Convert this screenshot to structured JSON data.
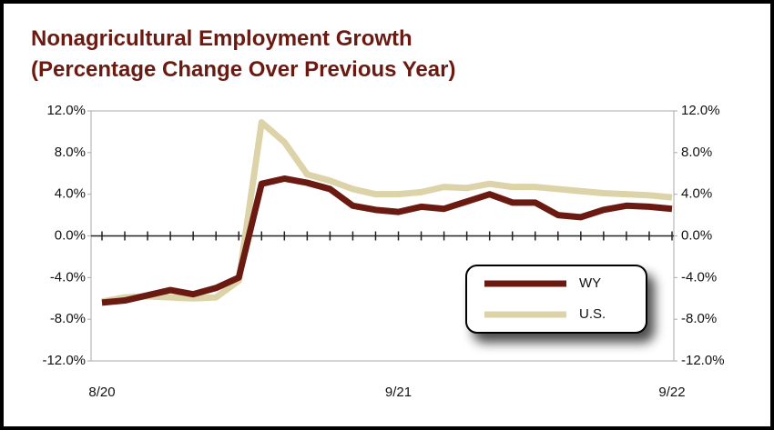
{
  "chart_data": {
    "type": "line",
    "title": "Nonagricultural Employment Growth",
    "subtitle": "(Percentage Change Over Previous Year)",
    "categories": [
      "8/20",
      null,
      null,
      null,
      null,
      null,
      null,
      null,
      null,
      null,
      null,
      null,
      null,
      "9/21",
      null,
      null,
      null,
      null,
      null,
      null,
      null,
      null,
      null,
      null,
      null,
      "9/22"
    ],
    "series": [
      {
        "name": "WY",
        "color": "#6b1a12",
        "values": [
          -6.4,
          -6.2,
          -5.7,
          -5.2,
          -5.6,
          -5.0,
          -4.0,
          5.0,
          5.5,
          5.1,
          4.5,
          2.9,
          2.5,
          2.3,
          2.8,
          2.6,
          3.3,
          4.0,
          3.2,
          3.2,
          2.0,
          1.8,
          2.5,
          2.9,
          2.8,
          2.6
        ]
      },
      {
        "name": "U.S.",
        "color": "#ddd3a8",
        "values": [
          -6.3,
          -5.9,
          -5.8,
          -5.9,
          -6.0,
          -5.9,
          -4.3,
          10.9,
          9.0,
          5.9,
          5.3,
          4.5,
          4.0,
          4.0,
          4.2,
          4.7,
          4.6,
          5.0,
          4.7,
          4.7,
          4.5,
          4.3,
          4.1,
          4.0,
          3.9,
          3.7
        ]
      }
    ],
    "ylim": [
      -12,
      12
    ],
    "yticks": [
      {
        "value": -12,
        "label": "-12.0%"
      },
      {
        "value": -8,
        "label": "-8.0%"
      },
      {
        "value": -4,
        "label": "-4.0%"
      },
      {
        "value": 0,
        "label": "0.0%"
      },
      {
        "value": 4,
        "label": "4.0%"
      },
      {
        "value": 8,
        "label": "8.0%"
      },
      {
        "value": 12,
        "label": "12.0%"
      }
    ],
    "y2lim": [
      -12,
      12
    ],
    "y2ticks": [
      {
        "value": -12,
        "label": "-12.0%"
      },
      {
        "value": -8,
        "label": "-8.0%"
      },
      {
        "value": -4,
        "label": "-4.0%"
      },
      {
        "value": 0,
        "label": "0.0%"
      },
      {
        "value": 4,
        "label": "4.0%"
      },
      {
        "value": 8,
        "label": "8.0%"
      },
      {
        "value": 12,
        "label": "12.0%"
      }
    ],
    "legend": "lower right"
  }
}
